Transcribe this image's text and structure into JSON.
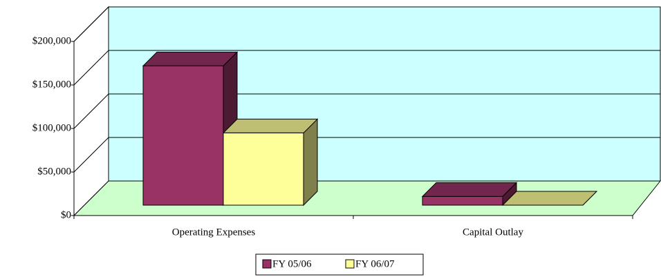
{
  "chart_data": {
    "type": "bar3d",
    "categories": [
      "Operating Expenses",
      "Capital Outlay"
    ],
    "series": [
      {
        "name": "FY 05/06",
        "color": "#993366",
        "values": [
          160000,
          10000
        ]
      },
      {
        "name": "FY 06/07",
        "color": "#ffff99",
        "values": [
          83000,
          0
        ]
      }
    ],
    "ylim": [
      0,
      200000
    ],
    "yticks": [
      {
        "value": 0,
        "label": "$0"
      },
      {
        "value": 50000,
        "label": "$50,000"
      },
      {
        "value": 100000,
        "label": "$100,000"
      },
      {
        "value": 150000,
        "label": "$150,000"
      },
      {
        "value": 200000,
        "label": "$200,000"
      }
    ],
    "grid": true,
    "legend": "bottom"
  }
}
